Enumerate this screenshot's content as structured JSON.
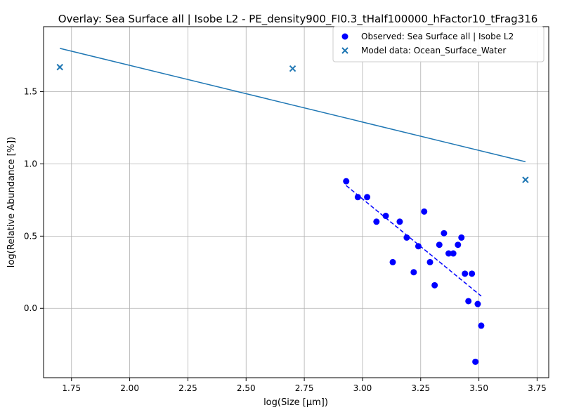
{
  "chart_data": {
    "type": "scatter",
    "title": "Overlay: Sea Surface all | Isobe L2 - PE_density900_FI0.3_tHalf100000_hFactor10_tFrag316",
    "xlabel": "log(Size [µm])",
    "ylabel": "log(Relative Abundance [%])",
    "xlim": [
      1.63,
      3.8
    ],
    "ylim": [
      -0.48,
      1.95
    ],
    "x_ticks": [
      1.75,
      2.0,
      2.25,
      2.5,
      2.75,
      3.0,
      3.25,
      3.5,
      3.75
    ],
    "x_tick_labels": [
      "1.75",
      "2.00",
      "2.25",
      "2.50",
      "2.75",
      "3.00",
      "3.25",
      "3.50",
      "3.75"
    ],
    "y_ticks": [
      0.0,
      0.5,
      1.0,
      1.5
    ],
    "y_tick_labels": [
      "0.0",
      "0.5",
      "1.0",
      "1.5"
    ],
    "grid": true,
    "legend_position": "top-right",
    "series": [
      {
        "name": "Observed: Sea Surface all | Isobe L2",
        "kind": "scatter",
        "marker": "circle",
        "color": "#0000ff",
        "points": [
          [
            2.93,
            0.88
          ],
          [
            2.98,
            0.77
          ],
          [
            3.02,
            0.77
          ],
          [
            3.06,
            0.6
          ],
          [
            3.1,
            0.64
          ],
          [
            3.13,
            0.32
          ],
          [
            3.16,
            0.6
          ],
          [
            3.19,
            0.49
          ],
          [
            3.22,
            0.25
          ],
          [
            3.24,
            0.43
          ],
          [
            3.265,
            0.67
          ],
          [
            3.29,
            0.32
          ],
          [
            3.31,
            0.16
          ],
          [
            3.33,
            0.44
          ],
          [
            3.35,
            0.52
          ],
          [
            3.37,
            0.38
          ],
          [
            3.39,
            0.38
          ],
          [
            3.41,
            0.44
          ],
          [
            3.425,
            0.49
          ],
          [
            3.44,
            0.24
          ],
          [
            3.455,
            0.05
          ],
          [
            3.47,
            0.24
          ],
          [
            3.485,
            -0.37
          ],
          [
            3.495,
            0.03
          ],
          [
            3.51,
            -0.12
          ]
        ]
      },
      {
        "name": "Model data: Ocean_Surface_Water",
        "kind": "scatter",
        "marker": "x",
        "color": "#1f77b4",
        "points": [
          [
            1.7,
            1.67
          ],
          [
            2.7,
            1.66
          ],
          [
            3.7,
            0.89
          ]
        ]
      },
      {
        "name": "",
        "kind": "line",
        "style": "solid",
        "color": "#1f77b4",
        "points": [
          [
            1.7,
            1.8
          ],
          [
            3.7,
            1.015
          ]
        ]
      },
      {
        "name": "",
        "kind": "line",
        "style": "dashed",
        "color": "#0000ff",
        "points": [
          [
            2.93,
            0.85
          ],
          [
            3.51,
            0.085
          ]
        ]
      }
    ]
  }
}
